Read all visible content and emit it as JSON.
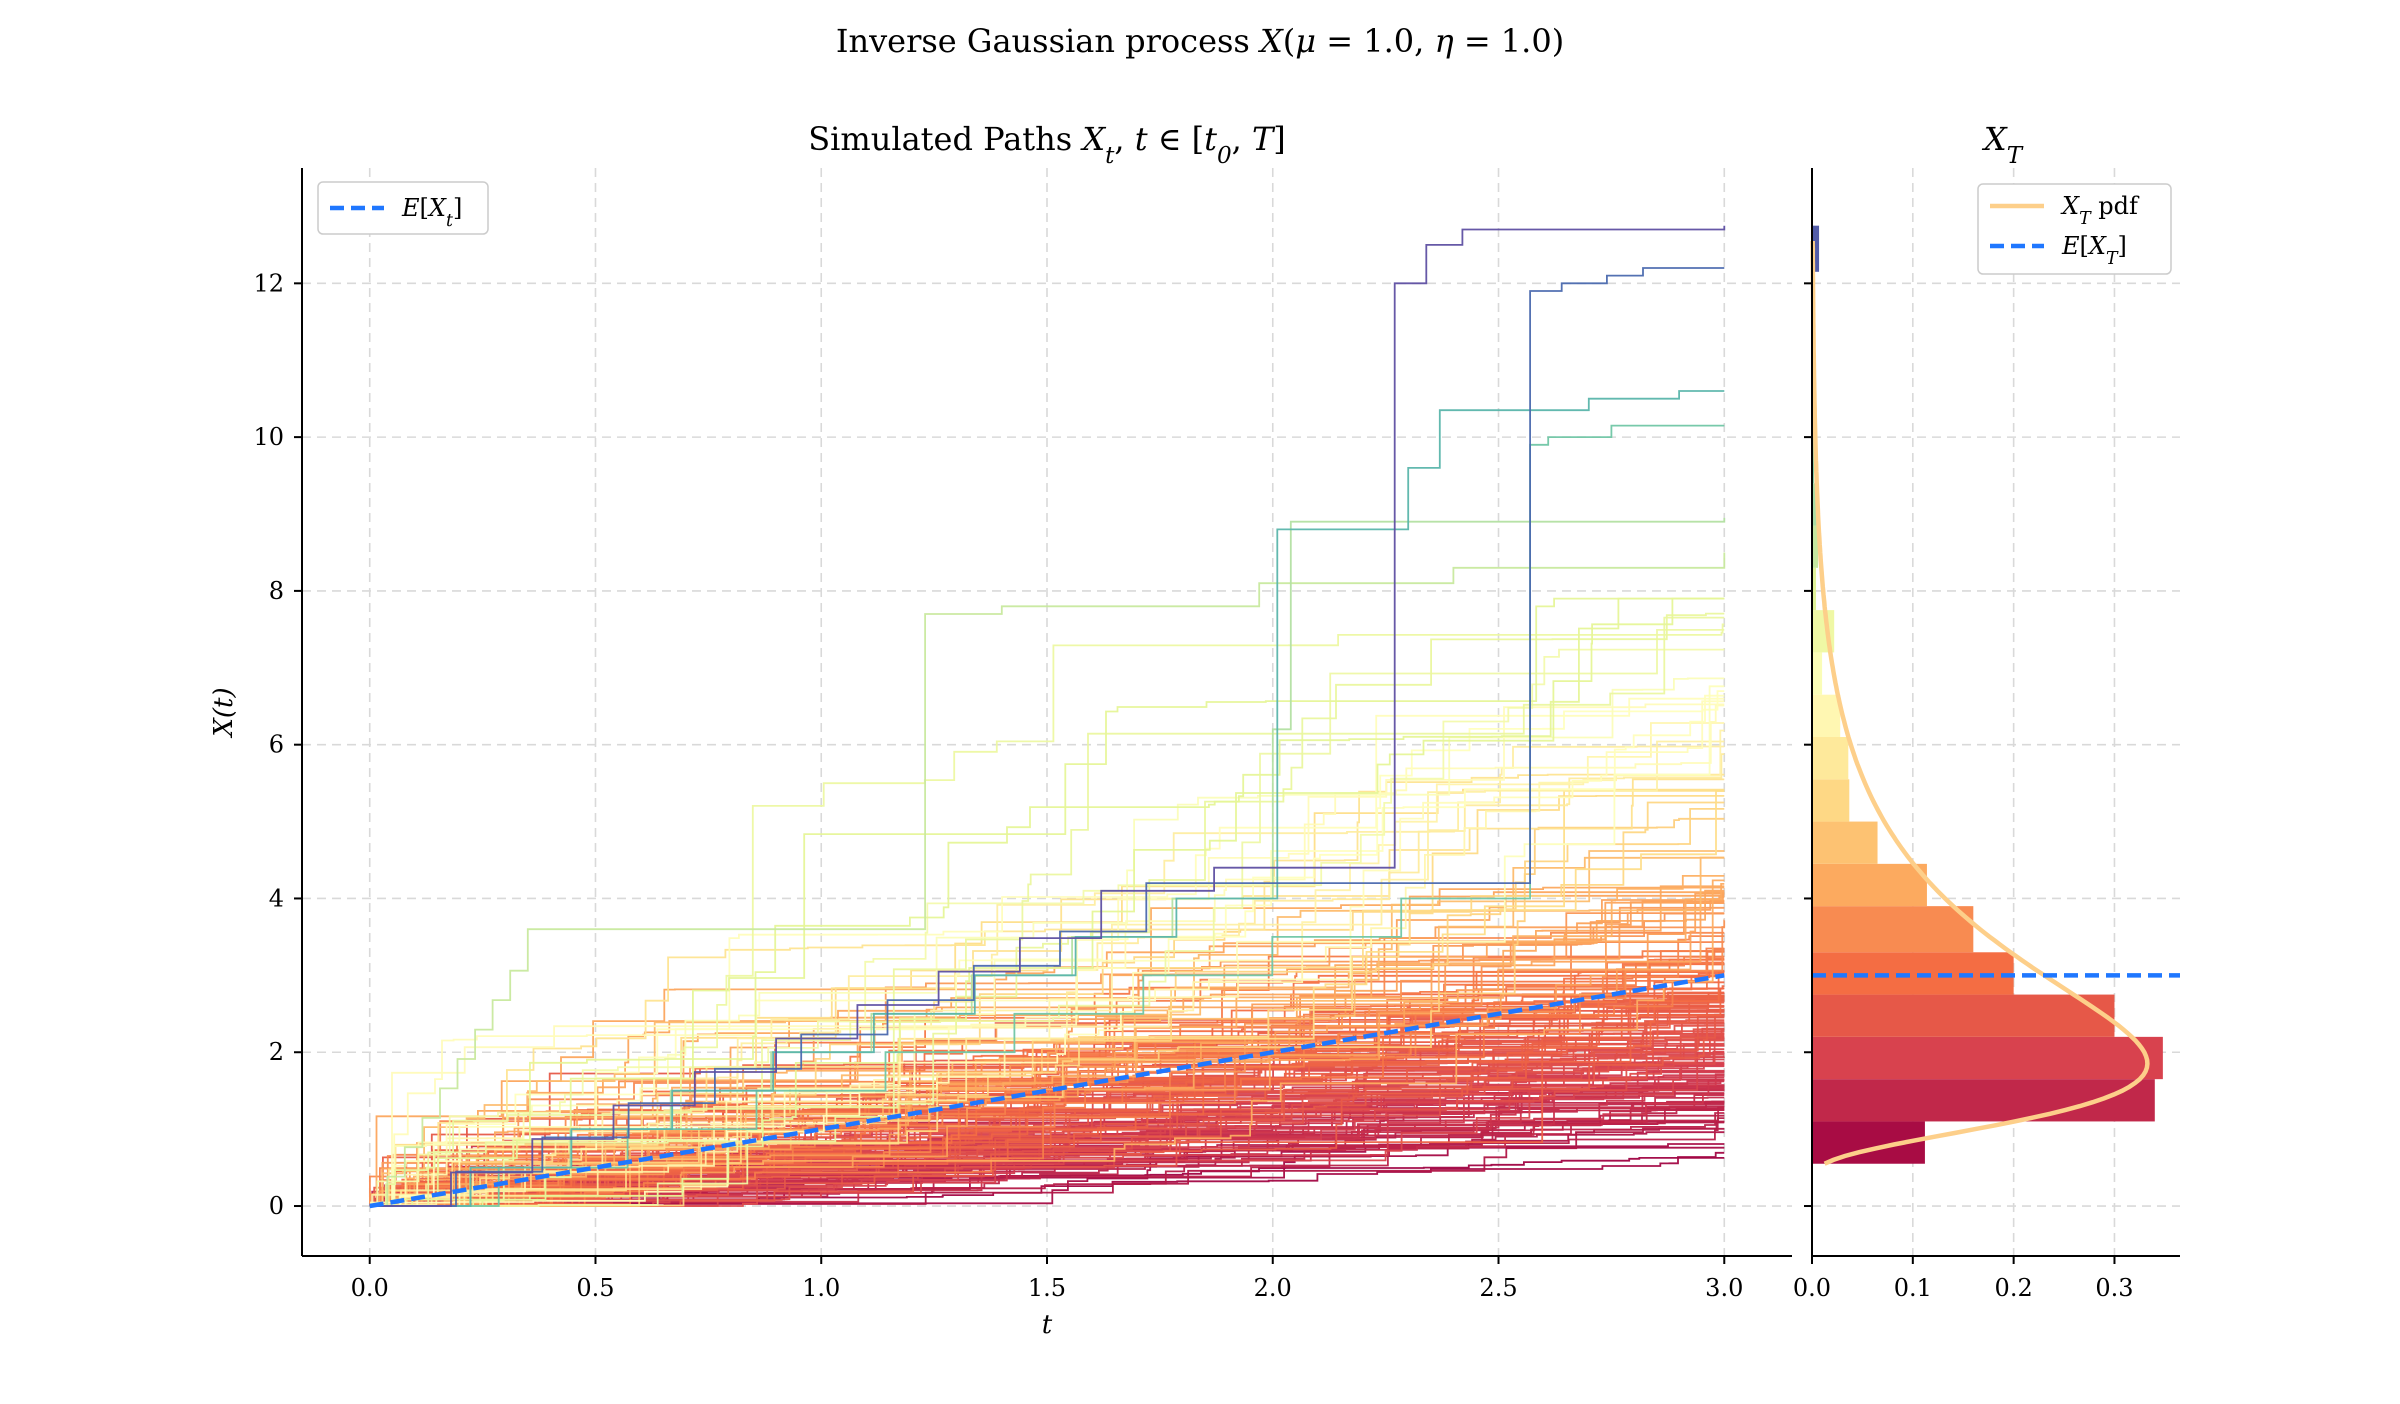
{
  "figure": {
    "suptitle": "Inverse Gaussian process X(μ = 1.0, η = 1.0)"
  },
  "chart_data": [
    {
      "type": "line",
      "title": "Simulated Paths X_t, t ∈ [t_0, T]",
      "xlabel": "t",
      "ylabel": "X(t)",
      "xlim": [
        -0.15,
        3.15
      ],
      "ylim": [
        -0.65,
        13.5
      ],
      "xticks": [
        "0.0",
        "0.5",
        "1.0",
        "1.5",
        "2.0",
        "2.5",
        "3.0"
      ],
      "xtick_values": [
        0,
        0.5,
        1.0,
        1.5,
        2.0,
        2.5,
        3.0
      ],
      "yticks": [
        "0",
        "2",
        "4",
        "6",
        "8",
        "10",
        "12"
      ],
      "ytick_values": [
        0,
        2,
        4,
        6,
        8,
        10,
        12
      ],
      "grid": true,
      "colormap": [
        "#9e0142",
        "#d53e4f",
        "#f46d43",
        "#fdae61",
        "#fee08b",
        "#ffffbf",
        "#e6f598",
        "#abdda4",
        "#66c2a5",
        "#3288bd",
        "#5e4fa2"
      ],
      "n_paths": 200,
      "t_end": 3.0,
      "expectation": {
        "label": "E[X_t]",
        "color": "#1f77ff",
        "points": [
          [
            0.0,
            0.0
          ],
          [
            3.0,
            3.0
          ]
        ]
      },
      "highlighted_paths": [
        {
          "final": 12.75,
          "jumps": [
            [
              1.62,
              4.1
            ],
            [
              1.87,
              4.4
            ],
            [
              2.27,
              12.0
            ],
            [
              2.34,
              12.5
            ],
            [
              2.42,
              12.7
            ]
          ]
        },
        {
          "final": 12.2,
          "jumps": [
            [
              1.72,
              4.2
            ],
            [
              2.57,
              11.9
            ],
            [
              2.64,
              12.0
            ],
            [
              2.74,
              12.1
            ],
            [
              2.82,
              12.2
            ]
          ]
        },
        {
          "final": 10.6,
          "jumps": [
            [
              2.01,
              8.8
            ],
            [
              2.3,
              9.6
            ],
            [
              2.37,
              10.35
            ],
            [
              2.7,
              10.5
            ],
            [
              2.9,
              10.6
            ]
          ]
        },
        {
          "final": 10.15,
          "jumps": [
            [
              2.57,
              9.9
            ],
            [
              2.61,
              10.0
            ],
            [
              2.75,
              10.15
            ]
          ]
        },
        {
          "final": 8.95,
          "jumps": [
            [
              2.0,
              6.2
            ],
            [
              2.04,
              8.9
            ]
          ]
        },
        {
          "final": 8.5,
          "jumps": [
            [
              0.35,
              3.6
            ],
            [
              1.23,
              7.7
            ],
            [
              1.4,
              7.8
            ],
            [
              1.97,
              8.1
            ],
            [
              2.4,
              8.3
            ]
          ]
        }
      ],
      "legend": {
        "position": "upper left",
        "entries": [
          "E[X_t]"
        ]
      }
    },
    {
      "type": "bar",
      "orientation": "horizontal",
      "title": "X_T",
      "xticks": [
        "0.0",
        "0.1",
        "0.2",
        "0.3"
      ],
      "xtick_values": [
        0,
        0.1,
        0.2,
        0.3
      ],
      "xlim": [
        0,
        0.365
      ],
      "grid": true,
      "bins": [
        {
          "y0": 0.55,
          "y1": 1.1,
          "density": 0.112
        },
        {
          "y0": 1.1,
          "y1": 1.65,
          "density": 0.34
        },
        {
          "y0": 1.65,
          "y1": 2.2,
          "density": 0.348
        },
        {
          "y0": 2.2,
          "y1": 2.75,
          "density": 0.3
        },
        {
          "y0": 2.75,
          "y1": 3.3,
          "density": 0.2
        },
        {
          "y0": 3.3,
          "y1": 3.9,
          "density": 0.16
        },
        {
          "y0": 3.9,
          "y1": 4.45,
          "density": 0.114
        },
        {
          "y0": 4.45,
          "y1": 5.0,
          "density": 0.065
        },
        {
          "y0": 5.0,
          "y1": 5.55,
          "density": 0.037
        },
        {
          "y0": 5.55,
          "y1": 6.1,
          "density": 0.036
        },
        {
          "y0": 6.1,
          "y1": 6.65,
          "density": 0.028
        },
        {
          "y0": 6.65,
          "y1": 7.2,
          "density": 0.01
        },
        {
          "y0": 7.2,
          "y1": 7.75,
          "density": 0.022
        },
        {
          "y0": 7.75,
          "y1": 8.3,
          "density": 0.004
        },
        {
          "y0": 8.3,
          "y1": 8.85,
          "density": 0.006
        },
        {
          "y0": 8.85,
          "y1": 9.4,
          "density": 0.005
        },
        {
          "y0": 9.4,
          "y1": 9.95,
          "density": 0.002
        },
        {
          "y0": 9.95,
          "y1": 10.5,
          "density": 0.003
        },
        {
          "y0": 10.5,
          "y1": 11.05,
          "density": 0.002
        },
        {
          "y0": 11.05,
          "y1": 11.6,
          "density": 0.001
        },
        {
          "y0": 11.6,
          "y1": 12.15,
          "density": 0.001
        },
        {
          "y0": 12.15,
          "y1": 12.75,
          "density": 0.007
        }
      ],
      "pdf": {
        "label": "X_T pdf",
        "color": "#fdcf8a",
        "params": {
          "mu": 3.0,
          "lambda": 9.0
        }
      },
      "mean_line": {
        "label": "E[X_T]",
        "value": 3.0,
        "color": "#1f77ff"
      },
      "legend": {
        "position": "upper right",
        "entries": [
          "X_T pdf",
          "E[X_T]"
        ]
      }
    }
  ]
}
